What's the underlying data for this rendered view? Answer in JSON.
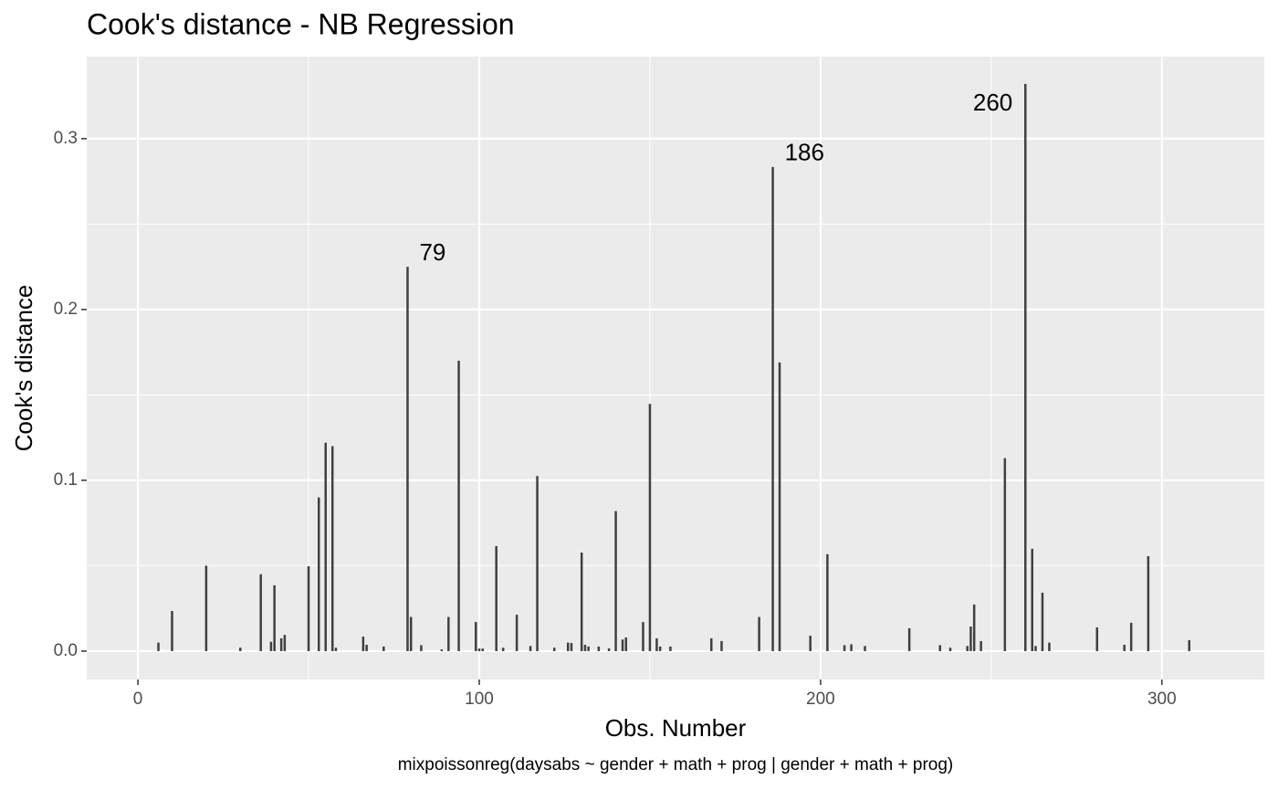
{
  "chart_data": {
    "type": "lollipop",
    "title": "Cook's distance - NB Regression",
    "xlabel": "Obs. Number",
    "ylabel": "Cook's distance",
    "caption": "mixpoissonreg(daysabs ~ gender + math + prog | gender + math + prog)",
    "color": "#404040",
    "grid": true,
    "xlim": [
      -15,
      330
    ],
    "ylim": [
      -0.0166,
      0.348
    ],
    "xticks": [
      0,
      100,
      200,
      300
    ],
    "yticks": [
      {
        "value": 0,
        "label": "0.0"
      },
      {
        "value": 0.1,
        "label": "0.1"
      },
      {
        "value": 0.2,
        "label": "0.2"
      },
      {
        "value": 0.3,
        "label": "0.3"
      }
    ],
    "x": [
      6,
      10,
      20,
      30,
      36,
      39,
      40,
      42,
      43,
      50,
      53,
      55,
      57,
      58,
      66,
      67,
      72,
      79,
      80,
      83,
      89,
      91,
      94,
      99,
      100,
      101,
      105,
      107,
      111,
      115,
      117,
      122,
      126,
      127,
      130,
      131,
      132,
      135,
      138,
      140,
      142,
      143,
      148,
      150,
      152,
      153,
      156,
      168,
      171,
      182,
      186,
      188,
      197,
      202,
      207,
      209,
      213,
      226,
      235,
      238,
      243,
      244,
      245,
      247,
      254,
      260,
      262,
      263,
      265,
      267,
      281,
      289,
      291,
      296,
      308
    ],
    "values": [
      0.005,
      0.0235,
      0.05,
      0.002,
      0.045,
      0.0055,
      0.0385,
      0.0075,
      0.0095,
      0.0497,
      0.09,
      0.122,
      0.12,
      0.002,
      0.0085,
      0.0037,
      0.0027,
      0.225,
      0.02,
      0.0035,
      0.001,
      0.02,
      0.17,
      0.017,
      0.0015,
      0.0015,
      0.0615,
      0.002,
      0.0213,
      0.003,
      0.1025,
      0.002,
      0.005,
      0.0048,
      0.0577,
      0.0037,
      0.0027,
      0.0027,
      0.0016,
      0.082,
      0.0068,
      0.008,
      0.017,
      0.1447,
      0.0075,
      0.0027,
      0.0027,
      0.0075,
      0.0059,
      0.02,
      0.2834,
      0.169,
      0.009,
      0.0567,
      0.0035,
      0.004,
      0.003,
      0.0134,
      0.0035,
      0.002,
      0.003,
      0.0144,
      0.0273,
      0.0059,
      0.113,
      0.332,
      0.0599,
      0.003,
      0.0342,
      0.005,
      0.0139,
      0.0037,
      0.0166,
      0.0556,
      0.0064
    ],
    "annotations": [
      "79",
      "186",
      "260"
    ]
  }
}
